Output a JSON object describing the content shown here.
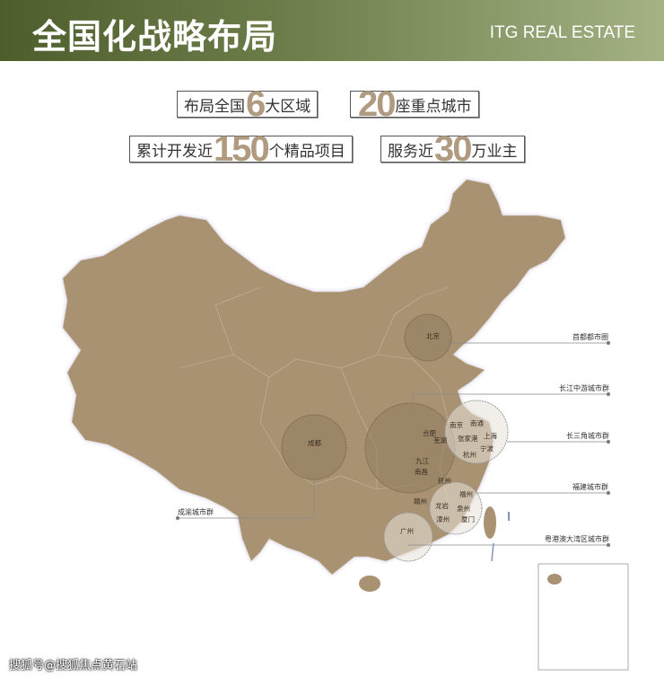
{
  "header": {
    "title": "全国化战略布局",
    "brand": "ITG REAL ESTATE"
  },
  "stats": [
    {
      "pre": "布局全国",
      "num": "6",
      "post": "大区域"
    },
    {
      "pre": "",
      "num": "20",
      "post": "座重点城市"
    },
    {
      "pre": "累计开发近",
      "num": "150",
      "post": "个精品项目"
    },
    {
      "pre": "服务近",
      "num": "30",
      "post": "万业主"
    }
  ],
  "clusters": [
    "首都都市圈",
    "长江中游城市群",
    "长三角城市群",
    "福建城市群",
    "粤港澳大湾区城市群",
    "成渝城市群"
  ],
  "cities": [
    "北京",
    "成都",
    "南京",
    "南通",
    "合肥",
    "芜湖",
    "张家港",
    "上海",
    "宁波",
    "杭州",
    "九江",
    "南昌",
    "抚州",
    "赣州",
    "福州",
    "龙岩",
    "泉州",
    "漳州",
    "厦门",
    "广州"
  ],
  "colors": {
    "map": "#a89272",
    "accent": "#b09a80",
    "header_dark": "#4d5e2c",
    "header_light": "#a4b284"
  },
  "watermark": "搜狐号@搜狐焦点黄石站"
}
